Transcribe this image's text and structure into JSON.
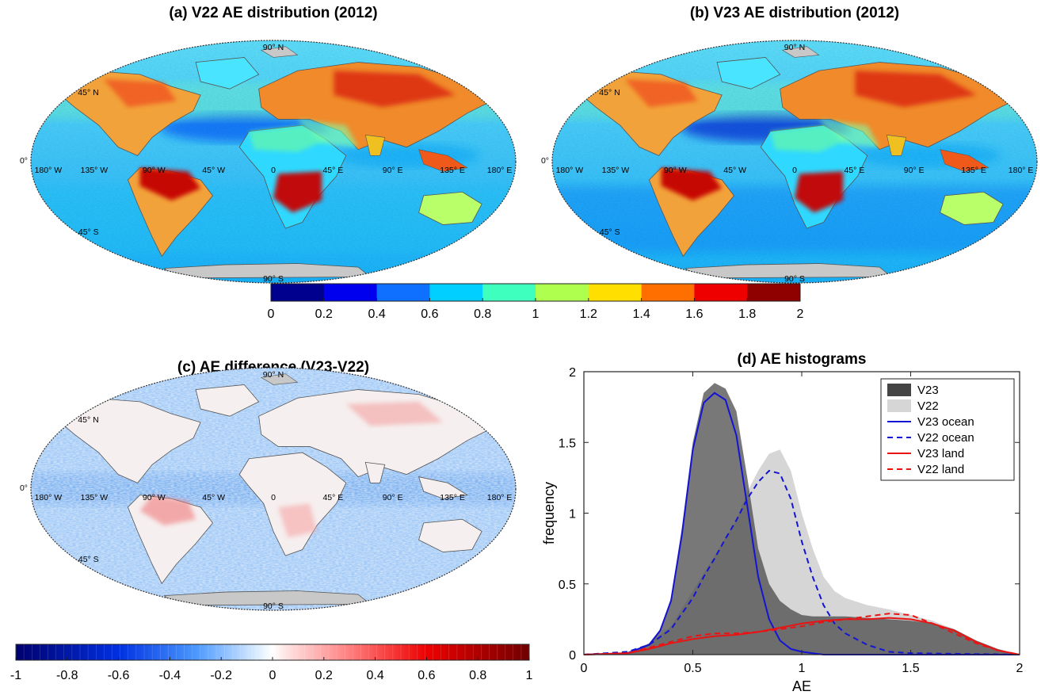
{
  "panels": [
    {
      "id": "a",
      "title": "(a) V22 AE distribution (2012)"
    },
    {
      "id": "b",
      "title": "(b) V23 AE distribution (2012)"
    },
    {
      "id": "c",
      "title": "(c) AE difference (V23-V22)"
    }
  ],
  "map_labels": {
    "north": "90° N",
    "lat45n": "45° N",
    "equator": "0°",
    "lat45s": "45° S",
    "south": "90° S",
    "lon": [
      "180° W",
      "135° W",
      "90° W",
      "45° W",
      "0",
      "45° E",
      "90° E",
      "135° E",
      "180° E"
    ]
  },
  "colorbar_top": {
    "ticks": [
      "0",
      "0.2",
      "0.4",
      "0.6",
      "0.8",
      "1",
      "1.2",
      "1.4",
      "1.6",
      "1.8",
      "2"
    ],
    "colors": [
      "#00008f",
      "#0000ef",
      "#0f6fff",
      "#00cfff",
      "#3fffbf",
      "#afff4f",
      "#ffdf00",
      "#ff6f00",
      "#ef0000",
      "#8f0000"
    ]
  },
  "colorbar_diff": {
    "ticks": [
      "-1",
      "-0.8",
      "-0.6",
      "-0.4",
      "-0.2",
      "0",
      "0.2",
      "0.4",
      "0.6",
      "0.8",
      "1"
    ]
  },
  "chart_data": {
    "type": "area",
    "title": "(d) AE histograms",
    "xlabel": "AE",
    "ylabel": "frequency",
    "xlim": [
      0,
      2
    ],
    "ylim": [
      0,
      2
    ],
    "xticks": [
      "0",
      "0.5",
      "1",
      "1.5",
      "2"
    ],
    "yticks": [
      "0",
      "0.5",
      "1",
      "1.5",
      "2"
    ],
    "legend_position": "top-right",
    "series": [
      {
        "name": "V23",
        "style": "filled",
        "color": "#444444",
        "x": [
          0,
          0.2,
          0.3,
          0.35,
          0.4,
          0.45,
          0.5,
          0.55,
          0.6,
          0.65,
          0.7,
          0.75,
          0.8,
          0.85,
          0.9,
          0.95,
          1.0,
          1.05,
          1.1,
          1.2,
          1.3,
          1.4,
          1.5,
          1.6,
          1.7,
          1.8,
          1.9,
          2.0
        ],
        "values": [
          0,
          0.01,
          0.08,
          0.18,
          0.4,
          0.9,
          1.5,
          1.85,
          1.92,
          1.88,
          1.72,
          1.25,
          0.75,
          0.5,
          0.38,
          0.32,
          0.28,
          0.27,
          0.27,
          0.27,
          0.26,
          0.25,
          0.24,
          0.22,
          0.18,
          0.1,
          0.04,
          0
        ]
      },
      {
        "name": "V22",
        "style": "filled",
        "color": "#d6d6d6",
        "x": [
          0,
          0.2,
          0.3,
          0.4,
          0.5,
          0.6,
          0.7,
          0.75,
          0.8,
          0.85,
          0.9,
          0.95,
          1.0,
          1.05,
          1.1,
          1.15,
          1.2,
          1.3,
          1.4,
          1.5,
          1.6,
          1.7,
          1.8,
          1.9,
          2.0
        ],
        "values": [
          0,
          0.02,
          0.08,
          0.2,
          0.45,
          0.7,
          0.95,
          1.15,
          1.3,
          1.42,
          1.45,
          1.3,
          1.0,
          0.75,
          0.55,
          0.45,
          0.4,
          0.35,
          0.32,
          0.28,
          0.24,
          0.18,
          0.1,
          0.04,
          0
        ]
      },
      {
        "name": "V23 ocean",
        "style": "solid",
        "color": "#1414d4",
        "x": [
          0,
          0.2,
          0.3,
          0.35,
          0.4,
          0.45,
          0.5,
          0.55,
          0.6,
          0.65,
          0.7,
          0.75,
          0.8,
          0.85,
          0.9,
          0.95,
          1.0,
          1.05,
          1.1,
          1.2,
          2.0
        ],
        "values": [
          0,
          0.01,
          0.07,
          0.17,
          0.38,
          0.85,
          1.45,
          1.78,
          1.85,
          1.8,
          1.55,
          1.05,
          0.55,
          0.25,
          0.1,
          0.04,
          0.02,
          0.01,
          0,
          0,
          0
        ]
      },
      {
        "name": "V22 ocean",
        "style": "dashed",
        "color": "#1414d4",
        "x": [
          0,
          0.2,
          0.3,
          0.4,
          0.5,
          0.55,
          0.6,
          0.65,
          0.7,
          0.75,
          0.8,
          0.85,
          0.9,
          0.95,
          1.0,
          1.05,
          1.1,
          1.15,
          1.2,
          1.3,
          1.4,
          1.5,
          2.0
        ],
        "values": [
          0,
          0.02,
          0.07,
          0.18,
          0.4,
          0.55,
          0.68,
          0.82,
          0.95,
          1.1,
          1.22,
          1.3,
          1.28,
          1.1,
          0.8,
          0.55,
          0.35,
          0.22,
          0.15,
          0.07,
          0.02,
          0.01,
          0
        ]
      },
      {
        "name": "V23 land",
        "style": "solid",
        "color": "#e81414",
        "x": [
          0,
          0.2,
          0.3,
          0.4,
          0.5,
          0.6,
          0.7,
          0.8,
          0.9,
          1.0,
          1.1,
          1.2,
          1.3,
          1.4,
          1.5,
          1.6,
          1.7,
          1.8,
          1.9,
          2.0
        ],
        "values": [
          0,
          0.01,
          0.04,
          0.08,
          0.11,
          0.13,
          0.14,
          0.16,
          0.19,
          0.22,
          0.24,
          0.25,
          0.25,
          0.26,
          0.25,
          0.22,
          0.17,
          0.09,
          0.03,
          0
        ]
      },
      {
        "name": "V22 land",
        "style": "dashed",
        "color": "#e81414",
        "x": [
          0,
          0.2,
          0.3,
          0.4,
          0.5,
          0.6,
          0.7,
          0.8,
          0.9,
          1.0,
          1.1,
          1.2,
          1.3,
          1.4,
          1.5,
          1.6,
          1.7,
          1.8,
          1.9,
          2.0
        ],
        "values": [
          0,
          0.01,
          0.05,
          0.09,
          0.13,
          0.15,
          0.15,
          0.16,
          0.18,
          0.2,
          0.23,
          0.25,
          0.27,
          0.29,
          0.28,
          0.22,
          0.15,
          0.08,
          0.03,
          0
        ]
      }
    ]
  }
}
